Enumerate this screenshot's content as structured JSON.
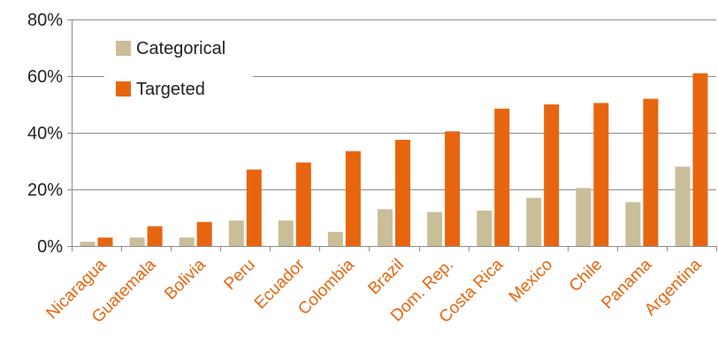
{
  "chart_data": {
    "type": "bar",
    "categories": [
      "Nicaragua",
      "Guatemala",
      "Bolivia",
      "Peru",
      "Ecuador",
      "Colombia",
      "Brazil",
      "Dom. Rep.",
      "Costa Rica",
      "Mexico",
      "Chile",
      "Panama",
      "Argentina"
    ],
    "series": [
      {
        "name": "Categorical",
        "color": "#c9be98",
        "values": [
          1.5,
          3,
          3,
          9,
          9,
          5,
          13,
          12,
          12.5,
          17,
          20.5,
          15.5,
          28
        ]
      },
      {
        "name": "Targeted",
        "color": "#e8650f",
        "values": [
          3,
          7,
          8.5,
          27,
          29.5,
          33.5,
          37.5,
          40.5,
          48.5,
          50,
          50.5,
          52,
          61
        ]
      }
    ],
    "y_ticks": [
      "0%",
      "20%",
      "40%",
      "60%",
      "80%"
    ],
    "ylim": [
      0,
      80
    ],
    "grid": true,
    "legend_position": "top-left",
    "category_label_color": "#e8650f",
    "axis_color": "#8c8c8c"
  }
}
